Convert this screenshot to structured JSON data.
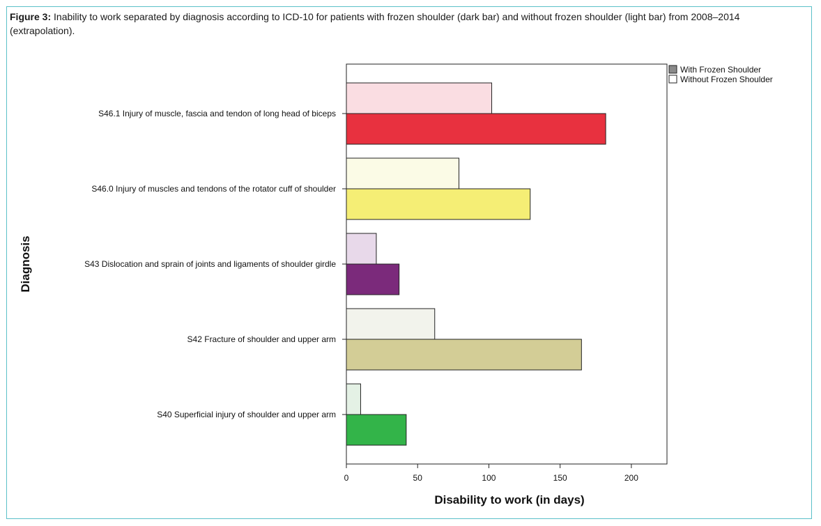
{
  "figure": {
    "caption_label": "Figure 3:",
    "caption_text": " Inability to work separated by diagnosis according to ICD-10 for patients with frozen shoulder (dark bar) and without frozen shoulder (light bar) from 2008–2014 (extrapolation)."
  },
  "chart_data": {
    "type": "bar",
    "orientation": "horizontal",
    "xlabel": "Disability to work (in days)",
    "ylabel": "Diagnosis",
    "xlim": [
      0,
      225
    ],
    "xticks": [
      0,
      50,
      100,
      150,
      200
    ],
    "grid": false,
    "legend_position": "top-right, outside plot",
    "legend": [
      {
        "name": "With Frozen Shoulder",
        "swatch": "#8a8a8a"
      },
      {
        "name": "Without Frozen Shoulder",
        "swatch": "#ffffff"
      }
    ],
    "categories": [
      "S46.1 Injury of muscle, fascia and tendon of long head of biceps",
      "S46.0 Injury of muscles and tendons of the rotator cuff of shoulder",
      "S43 Dislocation and sprain of joints and ligaments of shoulder girdle",
      "S42 Fracture of shoulder and upper arm",
      "S40 Superficial injury of shoulder and upper arm"
    ],
    "series": [
      {
        "name": "Without Frozen Shoulder",
        "values": [
          102,
          79,
          21,
          62,
          10
        ]
      },
      {
        "name": "With Frozen Shoulder",
        "values": [
          182,
          129,
          37,
          165,
          42
        ]
      }
    ],
    "colors": {
      "with": [
        "#e8313f",
        "#f5ee75",
        "#7b2a7b",
        "#d3cd96",
        "#33b449"
      ],
      "without": [
        "#fadde2",
        "#fbfbe6",
        "#e8d9ea",
        "#f2f3ec",
        "#e4f1e5"
      ]
    }
  }
}
